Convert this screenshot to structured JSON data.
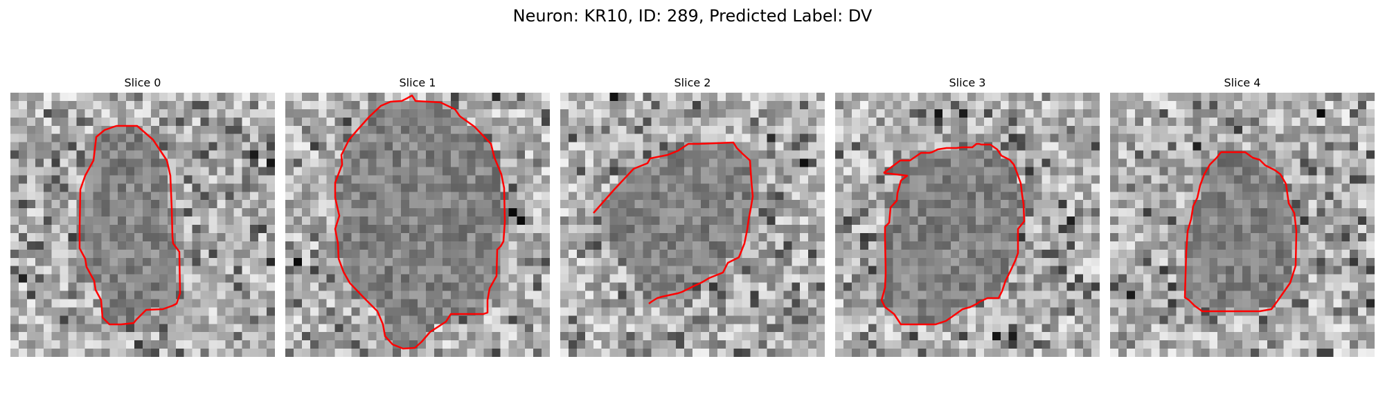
{
  "figure": {
    "suptitle": "Neuron: KR10, ID: 289, Predicted Label: DV"
  },
  "panels": [
    {
      "title": "Slice 0",
      "contour_color": "#ff0000"
    },
    {
      "title": "Slice 1",
      "contour_color": "#ff0000"
    },
    {
      "title": "Slice 2",
      "contour_color": "#ff0000"
    },
    {
      "title": "Slice 3",
      "contour_color": "#ff0000"
    },
    {
      "title": "Slice 4",
      "contour_color": "#ff0000"
    }
  ]
}
